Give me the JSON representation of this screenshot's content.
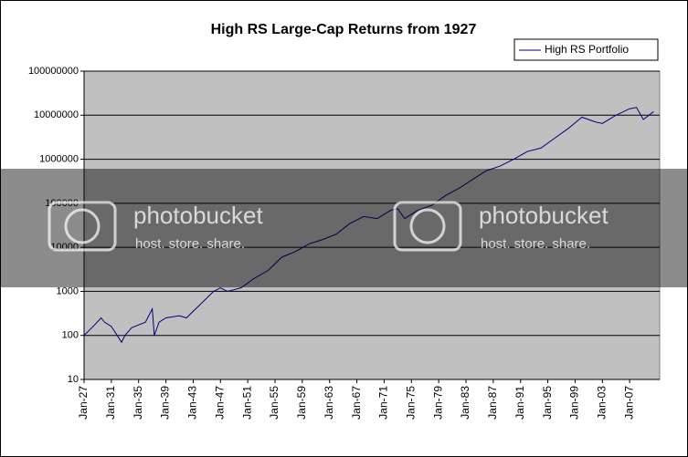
{
  "chart_data": {
    "type": "line",
    "title": "High RS Large-Cap Returns from 1927",
    "log_scale": true,
    "grid": true,
    "legend": "top-right",
    "x": [
      1927,
      1928.5,
      1929.5,
      1930,
      1931,
      1932.5,
      1933,
      1934,
      1936,
      1937,
      1937.3,
      1938,
      1939,
      1941,
      1942,
      1944,
      1946,
      1947,
      1948,
      1950,
      1952,
      1954,
      1956,
      1958,
      1960,
      1962,
      1964,
      1966,
      1968,
      1970,
      1972,
      1973,
      1974,
      1976,
      1978,
      1980,
      1982,
      1984,
      1986,
      1988,
      1990,
      1992,
      1994,
      1996,
      1998,
      2000,
      2002,
      2003,
      2005,
      2007,
      2008,
      2009,
      2010.5
    ],
    "series": [
      {
        "name": "High RS Portfolio",
        "color": "#000080",
        "values": [
          100,
          170,
          250,
          200,
          160,
          70,
          100,
          150,
          200,
          400,
          100,
          200,
          250,
          280,
          250,
          500,
          1000,
          1200,
          1000,
          1200,
          2000,
          3000,
          6000,
          8000,
          12000,
          15000,
          20000,
          35000,
          50000,
          45000,
          70000,
          75000,
          45000,
          70000,
          90000,
          150000,
          220000,
          350000,
          550000,
          700000,
          1000000,
          1500000,
          1800000,
          3000000,
          5000000,
          9000000,
          7000000,
          6500000,
          10000000,
          14000000,
          15000000,
          8000000,
          12000000
        ]
      }
    ],
    "xlim": [
      1927,
      2011.4
    ],
    "xticks": [
      {
        "value": 1927,
        "label": "Jan-27"
      },
      {
        "value": 1931,
        "label": "Jan-31"
      },
      {
        "value": 1935,
        "label": "Jan-35"
      },
      {
        "value": 1939,
        "label": "Jan-39"
      },
      {
        "value": 1943,
        "label": "Jan-43"
      },
      {
        "value": 1947,
        "label": "Jan-47"
      },
      {
        "value": 1951,
        "label": "Jan-51"
      },
      {
        "value": 1955,
        "label": "Jan-55"
      },
      {
        "value": 1959,
        "label": "Jan-59"
      },
      {
        "value": 1963,
        "label": "Jan-63"
      },
      {
        "value": 1967,
        "label": "Jan-67"
      },
      {
        "value": 1971,
        "label": "Jan-71"
      },
      {
        "value": 1975,
        "label": "Jan-75"
      },
      {
        "value": 1979,
        "label": "Jan-79"
      },
      {
        "value": 1983,
        "label": "Jan-83"
      },
      {
        "value": 1987,
        "label": "Jan-87"
      },
      {
        "value": 1991,
        "label": "Jan-91"
      },
      {
        "value": 1995,
        "label": "Jan-95"
      },
      {
        "value": 1999,
        "label": "Jan-99"
      },
      {
        "value": 2003,
        "label": "Jan-03"
      },
      {
        "value": 2007,
        "label": "Jan-07"
      }
    ],
    "ylim": [
      10,
      100000000
    ],
    "yticks": [
      10,
      100,
      1000,
      10000,
      100000,
      1000000,
      10000000,
      100000000
    ]
  },
  "watermark": {
    "brand": "photobucket",
    "tagline": "host. store. share."
  }
}
